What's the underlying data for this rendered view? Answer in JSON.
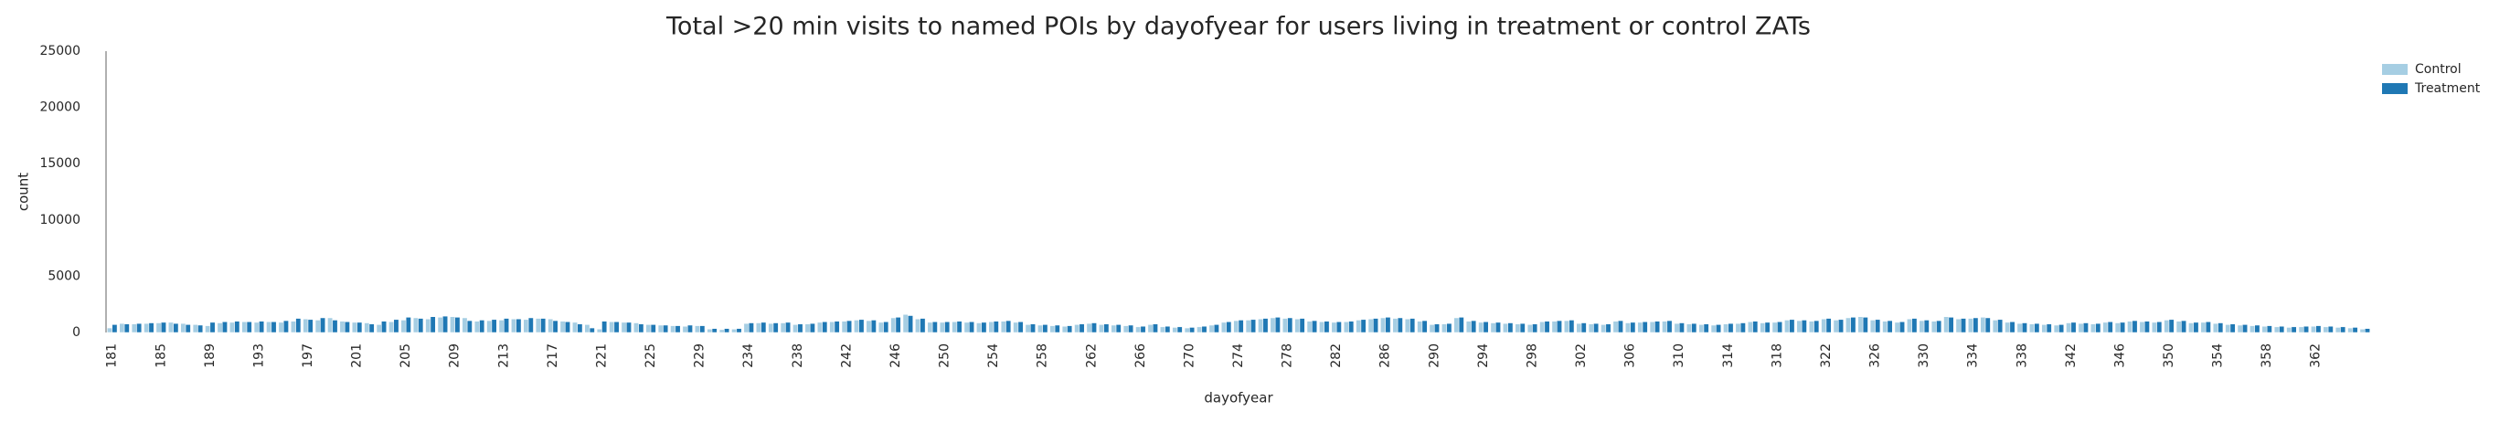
{
  "chart_data": {
    "type": "bar",
    "title": "Total >20 min visits to named POIs by dayofyear for users living in treatment or control ZATs",
    "x_label": "dayofyear",
    "y_label": "count",
    "categories": [
      "181",
      null,
      null,
      null,
      "185",
      null,
      null,
      null,
      "189",
      null,
      null,
      null,
      "193",
      null,
      null,
      null,
      "197",
      null,
      null,
      null,
      "201",
      null,
      null,
      null,
      "205",
      null,
      null,
      null,
      "209",
      null,
      null,
      null,
      "213",
      null,
      null,
      null,
      "217",
      null,
      null,
      null,
      "221",
      null,
      null,
      null,
      "225",
      null,
      null,
      null,
      "229",
      null,
      null,
      null,
      "234",
      null,
      null,
      null,
      "238",
      null,
      null,
      null,
      "242",
      null,
      null,
      null,
      "246",
      null,
      null,
      null,
      "250",
      null,
      null,
      null,
      "254",
      null,
      null,
      null,
      "258",
      null,
      null,
      null,
      "262",
      null,
      null,
      null,
      "266",
      null,
      null,
      null,
      "270",
      null,
      null,
      null,
      "274",
      null,
      null,
      null,
      "278",
      null,
      null,
      null,
      "282",
      null,
      null,
      null,
      "286",
      null,
      null,
      null,
      "290",
      null,
      null,
      null,
      "294",
      null,
      null,
      null,
      "298",
      null,
      null,
      null,
      "302",
      null,
      null,
      null,
      "306",
      null,
      null,
      null,
      "310",
      null,
      null,
      null,
      "314",
      null,
      null,
      null,
      "318",
      null,
      null,
      null,
      "322",
      null,
      null,
      null,
      "326",
      null,
      null,
      null,
      "330",
      null,
      null,
      null,
      "334",
      null,
      null,
      null,
      "338",
      null,
      null,
      null,
      "342",
      null,
      null,
      null,
      "346",
      null,
      null,
      null,
      "350",
      null,
      null,
      null,
      "354",
      null,
      null,
      null,
      "358",
      null,
      null,
      null,
      "362",
      null,
      null,
      null,
      null
    ],
    "series": [
      {
        "name": "Control",
        "color": "#a6cee3",
        "values": [
          400,
          800,
          750,
          800,
          850,
          900,
          800,
          700,
          600,
          850,
          900,
          950,
          900,
          950,
          900,
          1000,
          1200,
          1100,
          1300,
          1000,
          900,
          850,
          700,
          950,
          1100,
          1300,
          1200,
          1350,
          1400,
          1300,
          1000,
          1050,
          1100,
          1200,
          1150,
          1250,
          1200,
          1000,
          900,
          700,
          300,
          950,
          900,
          850,
          700,
          650,
          600,
          550,
          600,
          300,
          250,
          300,
          800,
          850,
          800,
          850,
          700,
          750,
          900,
          950,
          1000,
          1100,
          1050,
          900,
          1300,
          1600,
          1200,
          900,
          900,
          950,
          900,
          850,
          950,
          1000,
          900,
          700,
          650,
          600,
          550,
          700,
          800,
          700,
          650,
          600,
          500,
          700,
          500,
          450,
          400,
          500,
          650,
          900,
          1050,
          1100,
          1200,
          1300,
          1250,
          1200,
          1000,
          950,
          900,
          950,
          1100,
          1200,
          1300,
          1250,
          1200,
          1000,
          700,
          750,
          1300,
          1000,
          900,
          850,
          800,
          750,
          700,
          950,
          1000,
          1050,
          800,
          750,
          700,
          1000,
          850,
          900,
          950,
          1000,
          800,
          750,
          700,
          650,
          750,
          800,
          950,
          850,
          900,
          1100,
          1050,
          1000,
          1200,
          1100,
          1300,
          1400,
          1100,
          1000,
          900,
          1200,
          1050,
          1000,
          1400,
          1200,
          1250,
          1350,
          1100,
          900,
          800,
          750,
          700,
          650,
          850,
          800,
          750,
          900,
          850,
          1000,
          950,
          900,
          1100,
          1000,
          850,
          900,
          800,
          700,
          650,
          600,
          550,
          500,
          450,
          500,
          550,
          500,
          450,
          400,
          300
        ]
      },
      {
        "name": "Treatment",
        "color": "#1f78b4",
        "values": [
          700,
          750,
          800,
          850,
          900,
          800,
          700,
          650,
          900,
          950,
          1000,
          950,
          1000,
          950,
          1050,
          1250,
          1150,
          1300,
          1100,
          950,
          900,
          750,
          1000,
          1150,
          1350,
          1250,
          1400,
          1450,
          1350,
          1050,
          1100,
          1150,
          1250,
          1200,
          1300,
          1250,
          1050,
          950,
          750,
          400,
          1000,
          950,
          900,
          750,
          700,
          650,
          600,
          650,
          600,
          350,
          350,
          350,
          850,
          900,
          850,
          900,
          750,
          800,
          950,
          1000,
          1050,
          1150,
          1100,
          950,
          1350,
          1500,
          1250,
          950,
          950,
          1000,
          950,
          900,
          1000,
          1050,
          950,
          750,
          700,
          650,
          600,
          750,
          850,
          750,
          700,
          650,
          550,
          750,
          550,
          500,
          450,
          550,
          700,
          950,
          1100,
          1150,
          1250,
          1350,
          1300,
          1250,
          1050,
          1000,
          950,
          1000,
          1150,
          1250,
          1350,
          1300,
          1250,
          1050,
          750,
          800,
          1350,
          1050,
          950,
          900,
          850,
          800,
          750,
          1000,
          1050,
          1100,
          850,
          800,
          750,
          1050,
          900,
          950,
          1000,
          1050,
          850,
          800,
          750,
          700,
          800,
          850,
          1000,
          900,
          950,
          1150,
          1100,
          1050,
          1250,
          1150,
          1350,
          1350,
          1150,
          1050,
          950,
          1250,
          1100,
          1050,
          1350,
          1250,
          1300,
          1300,
          1150,
          950,
          850,
          800,
          750,
          700,
          900,
          850,
          800,
          950,
          900,
          1050,
          1000,
          950,
          1150,
          1050,
          900,
          950,
          850,
          750,
          700,
          650,
          600,
          550,
          500,
          550,
          600,
          550,
          500,
          450,
          350
        ]
      }
    ],
    "ylim": [
      0,
      25000
    ],
    "yticks": [
      0,
      5000,
      10000,
      15000,
      20000,
      25000
    ],
    "grid": false,
    "legend": "upper right"
  }
}
